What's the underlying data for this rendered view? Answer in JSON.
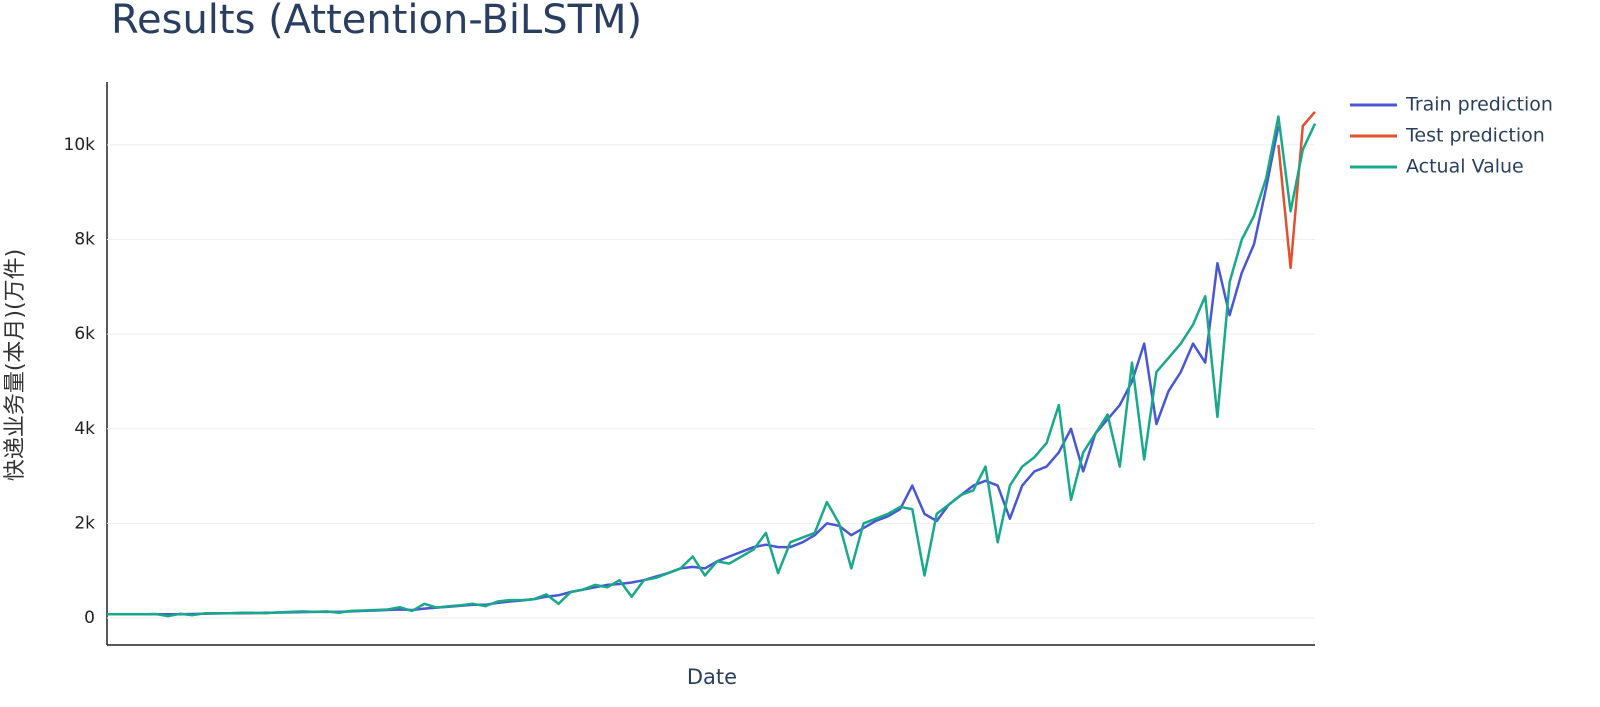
{
  "chart_data": {
    "type": "line",
    "title": "Results (Attention-BiLSTM)",
    "x_label": "Date",
    "y_label": "快递业务量(本月)(万件)",
    "ylim": [
      -570,
      11330
    ],
    "yticks": [
      0,
      {
        "value": 2000,
        "label": "2k"
      },
      {
        "value": 4000,
        "label": "4k"
      },
      {
        "value": 6000,
        "label": "6k"
      },
      {
        "value": 8000,
        "label": "8k"
      },
      {
        "value": 10000,
        "label": "10k"
      }
    ],
    "grid": true,
    "legend": "right",
    "series": [
      {
        "name": "Train prediction",
        "color": "#4a56d6",
        "values": [
          80,
          80,
          80,
          80,
          80,
          80,
          80,
          85,
          90,
          95,
          100,
          100,
          105,
          110,
          115,
          120,
          125,
          130,
          130,
          130,
          140,
          150,
          160,
          170,
          180,
          170,
          200,
          220,
          240,
          260,
          280,
          280,
          320,
          350,
          370,
          400,
          450,
          480,
          550,
          600,
          650,
          700,
          720,
          750,
          800,
          880,
          950,
          1050,
          1080,
          1050,
          1200,
          1300,
          1400,
          1500,
          1550,
          1500,
          1500,
          1600,
          1750,
          2000,
          1950,
          1750,
          1900,
          2050,
          2150,
          2300,
          2800,
          2200,
          2050,
          2400,
          2600,
          2800,
          2900,
          2800,
          2100,
          2800,
          3100,
          3200,
          3500,
          4000,
          3100,
          3900,
          4200,
          4500,
          5000,
          5800,
          4100,
          4800,
          5200,
          5800,
          5400,
          7500,
          6400,
          7300,
          7900,
          9100,
          10400,
          null,
          null,
          null
        ]
      },
      {
        "name": "Test prediction",
        "color": "#e2502e",
        "values": [
          null,
          null,
          null,
          null,
          null,
          null,
          null,
          null,
          null,
          null,
          null,
          null,
          null,
          null,
          null,
          null,
          null,
          null,
          null,
          null,
          null,
          null,
          null,
          null,
          null,
          null,
          null,
          null,
          null,
          null,
          null,
          null,
          null,
          null,
          null,
          null,
          null,
          null,
          null,
          null,
          null,
          null,
          null,
          null,
          null,
          null,
          null,
          null,
          null,
          null,
          null,
          null,
          null,
          null,
          null,
          null,
          null,
          null,
          null,
          null,
          null,
          null,
          null,
          null,
          null,
          null,
          null,
          null,
          null,
          null,
          null,
          null,
          null,
          null,
          null,
          null,
          null,
          null,
          null,
          null,
          null,
          null,
          null,
          null,
          null,
          null,
          null,
          null,
          null,
          null,
          null,
          null,
          null,
          null,
          null,
          null,
          10000,
          7400,
          10400,
          10700
        ]
      },
      {
        "name": "Actual Value",
        "color": "#18a98a",
        "values": [
          80,
          80,
          80,
          80,
          85,
          40,
          90,
          60,
          100,
          100,
          100,
          110,
          110,
          100,
          120,
          130,
          140,
          130,
          140,
          110,
          150,
          160,
          170,
          180,
          230,
          150,
          300,
          220,
          250,
          270,
          300,
          250,
          350,
          380,
          380,
          400,
          500,
          300,
          550,
          600,
          700,
          650,
          800,
          450,
          800,
          850,
          950,
          1050,
          1300,
          900,
          1200,
          1150,
          1300,
          1450,
          1800,
          950,
          1600,
          1700,
          1800,
          2450,
          2000,
          1050,
          2000,
          2100,
          2200,
          2350,
          2300,
          900,
          2200,
          2400,
          2600,
          2700,
          3200,
          1600,
          2800,
          3200,
          3400,
          3700,
          4500,
          2500,
          3500,
          3900,
          4300,
          3200,
          5400,
          3350,
          5200,
          5500,
          5800,
          6200,
          6800,
          4250,
          7100,
          8000,
          8500,
          9300,
          10600,
          8600,
          9900,
          10450
        ]
      }
    ]
  }
}
